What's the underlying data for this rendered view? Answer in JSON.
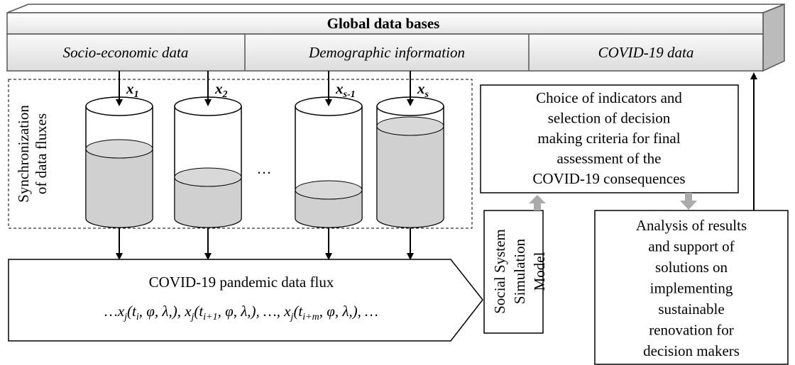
{
  "header": {
    "title": "Global data bases",
    "sources": [
      "Socio-economic data",
      "Demographic information",
      "COVID-19 data"
    ]
  },
  "inputs": [
    {
      "base": "x",
      "sub": "1"
    },
    {
      "base": "x",
      "sub": "2"
    },
    {
      "base": "x",
      "sub": "s-1"
    },
    {
      "base": "x",
      "sub": "s"
    }
  ],
  "ellipsis": "…",
  "sync_label": [
    "Synchronization",
    "of data fluxes"
  ],
  "choice_box": [
    "Choice of indicators and",
    "selection of decision",
    "making criteria for final",
    "assessment of the",
    "COVID-19  consequences"
  ],
  "model_box": [
    "Social System",
    "Simulation",
    "Model"
  ],
  "flux": {
    "title": "COVID-19 pandemic data flux",
    "formula": [
      {
        "t": "…x"
      },
      {
        "s": "j"
      },
      {
        "t": "(t"
      },
      {
        "s": "i"
      },
      {
        "t": ", φ, λ,), x"
      },
      {
        "s": "j"
      },
      {
        "t": "(t"
      },
      {
        "s": "i+1"
      },
      {
        "t": ", φ, λ,),  …,  x"
      },
      {
        "s": "j"
      },
      {
        "t": "(t"
      },
      {
        "s": "i+m"
      },
      {
        "t": ", φ, λ,),  …"
      }
    ]
  },
  "analysis_box": [
    "Analysis of results",
    "and support of",
    "solutions on",
    "implementing",
    "sustainable",
    "renovation for",
    "decision makers"
  ]
}
